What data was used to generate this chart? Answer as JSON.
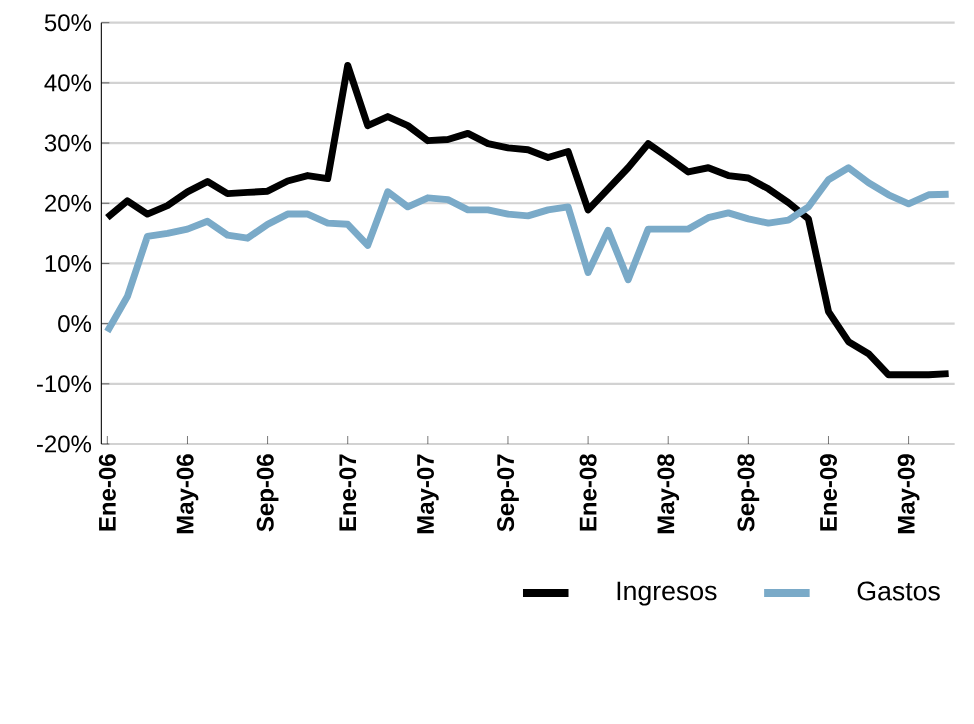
{
  "chart_data": {
    "type": "line",
    "categories": [
      "Ene-06",
      null,
      null,
      null,
      "May-06",
      null,
      null,
      null,
      "Sep-06",
      null,
      null,
      null,
      "Ene-07",
      null,
      null,
      null,
      "May-07",
      null,
      null,
      null,
      "Sep-07",
      null,
      null,
      null,
      "Ene-08",
      null,
      null,
      null,
      "May-08",
      null,
      null,
      null,
      "Sep-08",
      null,
      null,
      null,
      "Ene-09",
      null,
      null,
      null,
      "May-09",
      null,
      null
    ],
    "series": [
      {
        "name": "Ingresos",
        "color": "#000000",
        "values": [
          17.6,
          20.4,
          18.2,
          19.6,
          21.9,
          23.6,
          21.6,
          21.8,
          22.0,
          23.7,
          24.6,
          24.1,
          42.9,
          32.9,
          34.4,
          32.9,
          30.4,
          30.6,
          31.6,
          29.9,
          29.2,
          28.9,
          27.6,
          28.6,
          18.9,
          22.4,
          25.9,
          29.9,
          27.6,
          25.2,
          25.9,
          24.6,
          24.2,
          22.4,
          20.1,
          17.4,
          2.0,
          -3.0,
          -5.0,
          -8.5,
          -8.5,
          -8.5,
          -8.3
        ]
      },
      {
        "name": "Gastos",
        "color": "#7aaac8",
        "values": [
          -1.3,
          4.5,
          14.5,
          15.0,
          15.7,
          17.0,
          14.7,
          14.2,
          16.5,
          18.2,
          18.2,
          16.7,
          16.5,
          13.0,
          21.9,
          19.4,
          20.9,
          20.6,
          18.9,
          18.9,
          18.2,
          17.9,
          18.9,
          19.4,
          8.5,
          15.5,
          7.3,
          15.7,
          15.7,
          15.7,
          17.6,
          18.4,
          17.4,
          16.7,
          17.2,
          19.4,
          23.9,
          25.9,
          23.4,
          21.4,
          19.9,
          21.4,
          21.5
        ]
      }
    ],
    "ylim": [
      -20,
      50
    ],
    "yticks": [
      {
        "value": -20,
        "label": "-20%"
      },
      {
        "value": -10,
        "label": "-10%"
      },
      {
        "value": 0,
        "label": "0%"
      },
      {
        "value": 10,
        "label": "10%"
      },
      {
        "value": 20,
        "label": "20%"
      },
      {
        "value": 30,
        "label": "30%"
      },
      {
        "value": 40,
        "label": "40%"
      },
      {
        "value": 50,
        "label": "50%"
      }
    ],
    "grid": "y",
    "legend": "bottom right",
    "marker": "none",
    "line_style": "solid"
  }
}
